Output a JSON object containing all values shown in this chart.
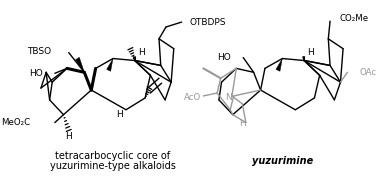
{
  "background_color": "#ffffff",
  "left_label_line1": "tetracarbocyclic core of",
  "left_label_line2": "yuzurimine-type alkaloids",
  "right_label": "yuzurimine",
  "label_fontsize": 7.0,
  "fig_width": 3.78,
  "fig_height": 1.87,
  "dpi": 100,
  "gray_color": "#999999",
  "lw": 1.0
}
